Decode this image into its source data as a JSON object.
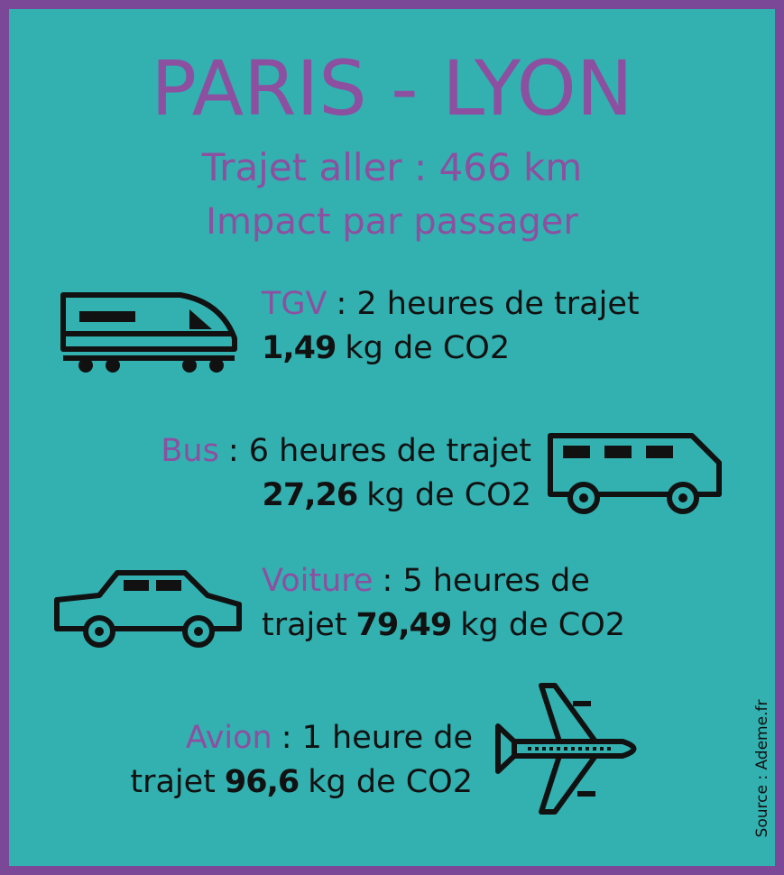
{
  "header": {
    "title": "PARIS - LYON",
    "subtitle": "Trajet aller : 466 km",
    "tagline": "Impact par passager"
  },
  "items": [
    {
      "mode": "TGV",
      "line1": ": 2 heures de trajet",
      "value": "1,49",
      "unit": "kg de CO2"
    },
    {
      "mode": "Bus",
      "line1": ": 6 heures de trajet",
      "value": "27,26",
      "unit": "kg de CO2"
    },
    {
      "mode": "Voiture",
      "line1": ": 5 heures de",
      "prefix": "trajet",
      "value": "79,49",
      "unit": "kg de CO2"
    },
    {
      "mode": "Avion",
      "line1": ": 1 heure de",
      "prefix": "trajet",
      "value": "96,6",
      "unit": "kg de CO2"
    }
  ],
  "source": "Source : Ademe.fr"
}
